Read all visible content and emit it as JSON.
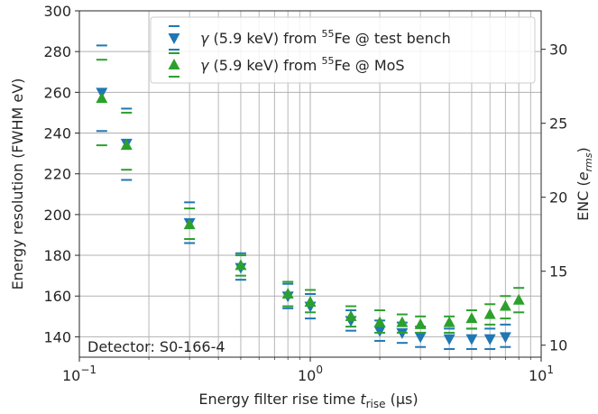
{
  "chart_data": {
    "type": "scatter",
    "x_label_main": "Energy filter rise time ",
    "x_label_sym": "t",
    "x_label_sub": "rise",
    "x_label_unit": " (µs)",
    "y_label": "Energy resolution (FWHM eV)",
    "y2_label_main": "ENC (",
    "y2_label_sym": "e",
    "y2_label_sub": "rms",
    "y2_label_end": ")",
    "x_scale": "log",
    "x_lim": [
      0.1,
      10
    ],
    "y_lim": [
      130,
      300
    ],
    "y2_lim": [
      9.19,
      32.6
    ],
    "x_ticks": [
      {
        "value": 0.1,
        "base": "10",
        "exp": "−1"
      },
      {
        "value": 1,
        "base": "10",
        "exp": "0"
      },
      {
        "value": 10,
        "base": "10",
        "exp": "1"
      }
    ],
    "y_ticks": [
      {
        "value": 140,
        "label": "140"
      },
      {
        "value": 160,
        "label": "160"
      },
      {
        "value": 180,
        "label": "180"
      },
      {
        "value": 200,
        "label": "200"
      },
      {
        "value": 220,
        "label": "220"
      },
      {
        "value": 240,
        "label": "240"
      },
      {
        "value": 260,
        "label": "260"
      },
      {
        "value": 280,
        "label": "280"
      },
      {
        "value": 300,
        "label": "300"
      }
    ],
    "y2_ticks": [
      {
        "value": 10,
        "label": "10"
      },
      {
        "value": 15,
        "label": "15"
      },
      {
        "value": 20,
        "label": "20"
      },
      {
        "value": 25,
        "label": "25"
      },
      {
        "value": 30,
        "label": "30"
      }
    ],
    "grid": "on (major and minor x, major y)",
    "legend_position": "top-right",
    "annotation": "Detector: S0-166-4",
    "series": [
      {
        "name_pre": "γ (5.9 keV) from ",
        "name_sup": "55",
        "name_post": "Fe @ test bench",
        "color": "#1f77b4",
        "marker": "triangle-down",
        "points": [
          {
            "x": 0.125,
            "y": 260,
            "err_low": 241,
            "err_high": 283
          },
          {
            "x": 0.16,
            "y": 235,
            "err_low": 217,
            "err_high": 252
          },
          {
            "x": 0.3,
            "y": 196,
            "err_low": 186,
            "err_high": 206
          },
          {
            "x": 0.5,
            "y": 174,
            "err_low": 168,
            "err_high": 181
          },
          {
            "x": 0.8,
            "y": 160,
            "err_low": 154,
            "err_high": 166
          },
          {
            "x": 1.0,
            "y": 155,
            "err_low": 149,
            "err_high": 161
          },
          {
            "x": 1.5,
            "y": 148,
            "err_low": 143,
            "err_high": 153
          },
          {
            "x": 2.0,
            "y": 143,
            "err_low": 138,
            "err_high": 148
          },
          {
            "x": 2.5,
            "y": 142,
            "err_low": 137,
            "err_high": 147
          },
          {
            "x": 3.0,
            "y": 140,
            "err_low": 135,
            "err_high": 145
          },
          {
            "x": 4.0,
            "y": 139,
            "err_low": 134,
            "err_high": 144
          },
          {
            "x": 5.0,
            "y": 139,
            "err_low": 134,
            "err_high": 144
          },
          {
            "x": 6.0,
            "y": 139,
            "err_low": 134,
            "err_high": 144
          },
          {
            "x": 7.0,
            "y": 140,
            "err_low": 135,
            "err_high": 146
          }
        ]
      },
      {
        "name_pre": "γ (5.9 keV) from ",
        "name_sup": "55",
        "name_post": "Fe @ MoS",
        "color": "#2ca02c",
        "marker": "triangle-up",
        "points": [
          {
            "x": 0.125,
            "y": 257,
            "err_low": 234,
            "err_high": 276
          },
          {
            "x": 0.16,
            "y": 234,
            "err_low": 222,
            "err_high": 250
          },
          {
            "x": 0.3,
            "y": 195,
            "err_low": 188,
            "err_high": 203
          },
          {
            "x": 0.5,
            "y": 175,
            "err_low": 170,
            "err_high": 180
          },
          {
            "x": 0.8,
            "y": 161,
            "err_low": 155,
            "err_high": 167
          },
          {
            "x": 1.0,
            "y": 157,
            "err_low": 152,
            "err_high": 163
          },
          {
            "x": 1.5,
            "y": 150,
            "err_low": 145,
            "err_high": 155
          },
          {
            "x": 2.0,
            "y": 147,
            "err_low": 142,
            "err_high": 153
          },
          {
            "x": 2.5,
            "y": 147,
            "err_low": 142,
            "err_high": 151
          },
          {
            "x": 3.0,
            "y": 146,
            "err_low": 142,
            "err_high": 150
          },
          {
            "x": 4.0,
            "y": 147,
            "err_low": 142,
            "err_high": 150
          },
          {
            "x": 5.0,
            "y": 149,
            "err_low": 144,
            "err_high": 153
          },
          {
            "x": 6.0,
            "y": 151,
            "err_low": 146,
            "err_high": 156
          },
          {
            "x": 7.0,
            "y": 155,
            "err_low": 149,
            "err_high": 160
          },
          {
            "x": 8.0,
            "y": 158,
            "err_low": 152,
            "err_high": 164
          }
        ]
      }
    ]
  }
}
